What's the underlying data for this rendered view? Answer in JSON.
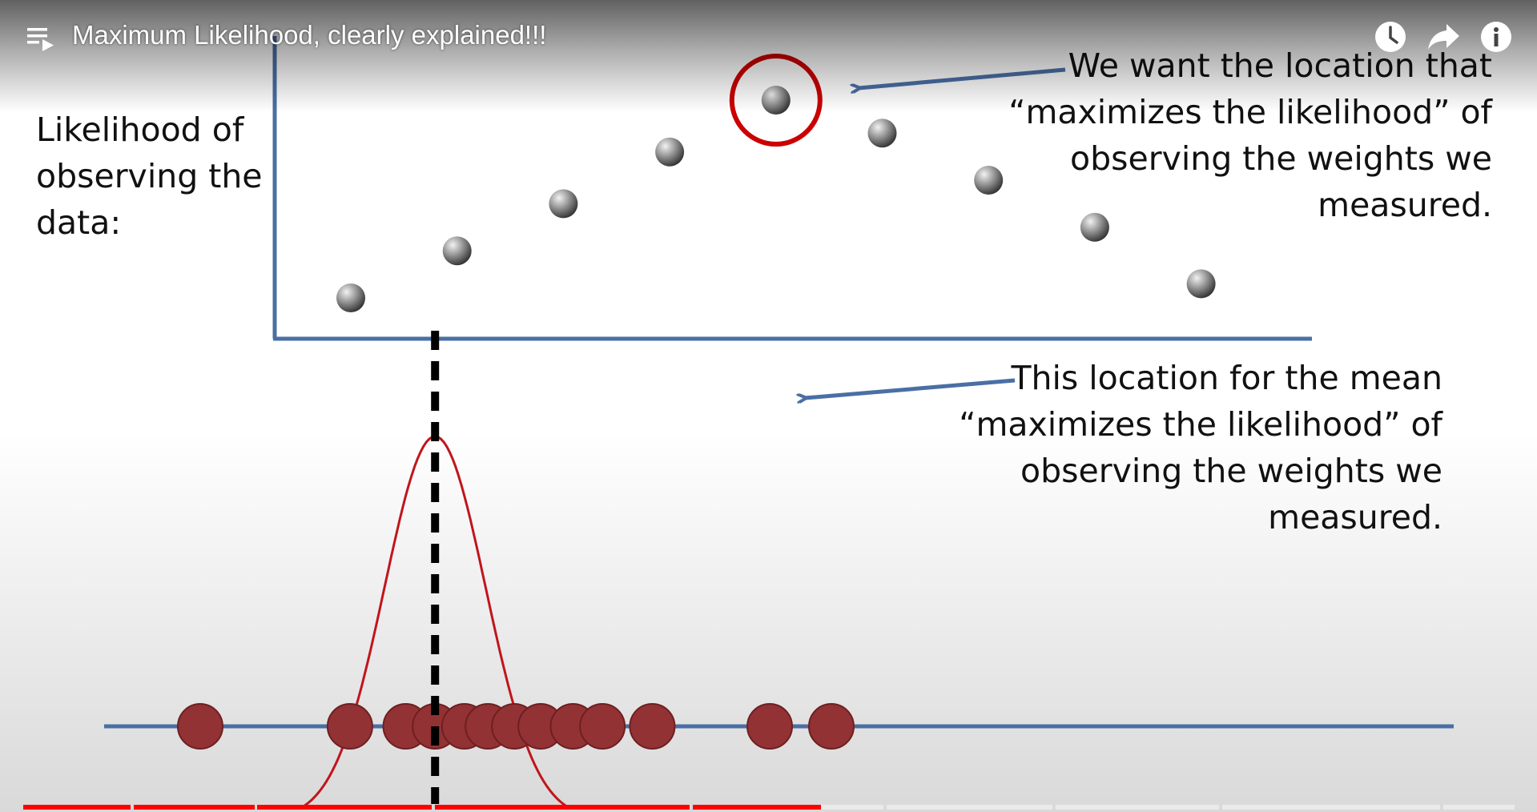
{
  "header": {
    "title": "Maximum Likelihood, clearly explained!!!",
    "playlist_icon": "playlist-icon",
    "buttons": [
      {
        "name": "watch-later",
        "icon": "clock-icon"
      },
      {
        "name": "share",
        "icon": "share-arrow-icon"
      },
      {
        "name": "info",
        "icon": "info-icon"
      }
    ]
  },
  "slide": {
    "y_label": "Likelihood of\nobserving the\ndata:",
    "annotation_top": "We want the location that\n“maximizes the likelihood” of\nobserving the weights we\nmeasured.",
    "annotation_mid": "This location for the mean\n“maximizes the likelihood” of\nobserving the weights we\nmeasured."
  },
  "chart_data": [
    {
      "type": "scatter",
      "title": "",
      "ylabel": "Likelihood of observing the data:",
      "x": [
        1,
        2,
        3,
        4,
        5,
        6,
        7,
        8,
        9
      ],
      "y": [
        1.0,
        2.0,
        3.0,
        4.1,
        5.2,
        4.5,
        3.5,
        2.5,
        1.3
      ],
      "highlighted_point_index": 4
    },
    {
      "type": "line",
      "title": "",
      "series": [
        {
          "name": "normal curve",
          "x_mean": 5.0,
          "sd": 0.86
        }
      ],
      "observations": [
        1.0,
        3.55,
        4.5,
        5.0,
        5.5,
        5.9,
        6.35,
        6.8,
        7.35,
        7.85,
        8.7,
        10.7,
        11.75
      ],
      "mean_line_x": 5.0
    }
  ],
  "progress": {
    "played_fraction": 0.535,
    "segments": [
      {
        "start": 0.0,
        "end": 0.072
      },
      {
        "start": 0.074,
        "end": 0.155
      },
      {
        "start": 0.157,
        "end": 0.274
      },
      {
        "start": 0.276,
        "end": 0.447
      },
      {
        "start": 0.449,
        "end": 0.577
      },
      {
        "start": 0.579,
        "end": 0.69
      },
      {
        "start": 0.692,
        "end": 0.802
      },
      {
        "start": 0.804,
        "end": 0.95
      },
      {
        "start": 0.952,
        "end": 1.0
      }
    ]
  },
  "colors": {
    "axis_blue": "#4a6fa5",
    "circle_red": "#cc0000",
    "curve_red": "#c0151b",
    "obs_fill": "#923234",
    "progress_red": "#ff0000"
  }
}
